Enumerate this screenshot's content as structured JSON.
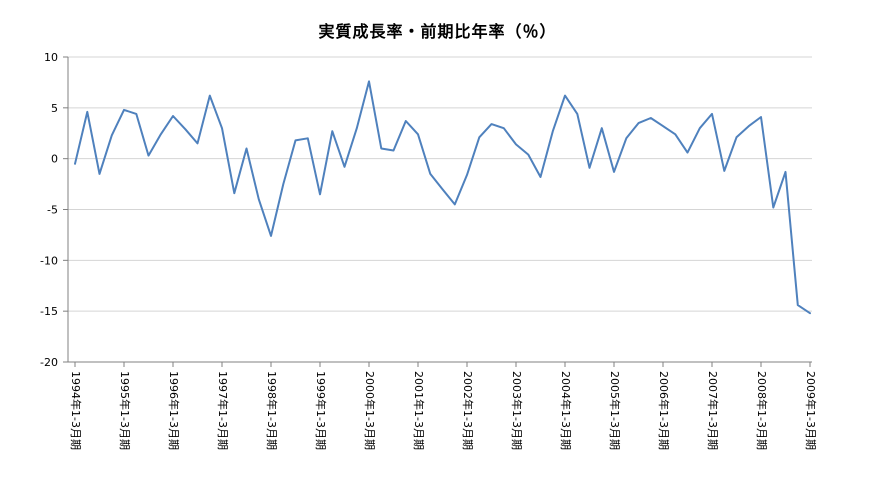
{
  "page": {
    "background_color": "#FFFFFF"
  },
  "chart_data": {
    "type": "line",
    "title": "実質成長率・前期比年率（％）",
    "legend": "none",
    "grid": true,
    "line_color": "#4F81BD",
    "grid_color": "#D5D5D5",
    "axis_color": "#808080",
    "text_color": "#000000",
    "ylim": [
      -20,
      10
    ],
    "y_ticks": [
      10,
      5,
      0,
      -5,
      -10,
      -15,
      -20
    ],
    "x_tick_every": 4,
    "x_tick_labels": [
      "1994年1-3月期",
      "1995年1-3月期",
      "1996年1-3月期",
      "1997年1-3月期",
      "1998年1-3月期",
      "1999年1-3月期",
      "2000年1-3月期",
      "2001年1-3月期",
      "2002年1-3月期",
      "2003年1-3月期",
      "2004年1-3月期",
      "2005年1-3月期",
      "2006年1-3月期",
      "2007年1-3月期",
      "2008年1-3月期",
      "2009年1-3月期"
    ],
    "x_unit": "quarter",
    "values": [
      -0.5,
      4.6,
      -1.5,
      2.3,
      4.8,
      4.4,
      0.3,
      2.4,
      4.2,
      2.9,
      1.5,
      6.2,
      3.0,
      -3.4,
      1.0,
      -4.0,
      -7.6,
      -2.5,
      1.8,
      2.0,
      -3.5,
      2.7,
      -0.8,
      3.0,
      7.6,
      1.0,
      0.8,
      3.7,
      2.4,
      -1.5,
      -3.0,
      -4.5,
      -1.6,
      2.1,
      3.4,
      3.0,
      1.4,
      0.4,
      -1.8,
      2.7,
      6.2,
      4.4,
      -0.9,
      3.0,
      -1.3,
      2.0,
      3.5,
      4.0,
      3.2,
      2.4,
      0.6,
      3.0,
      4.4,
      -1.2,
      2.1,
      3.2,
      4.1,
      -4.8,
      -1.3,
      -14.4,
      -15.2
    ]
  }
}
